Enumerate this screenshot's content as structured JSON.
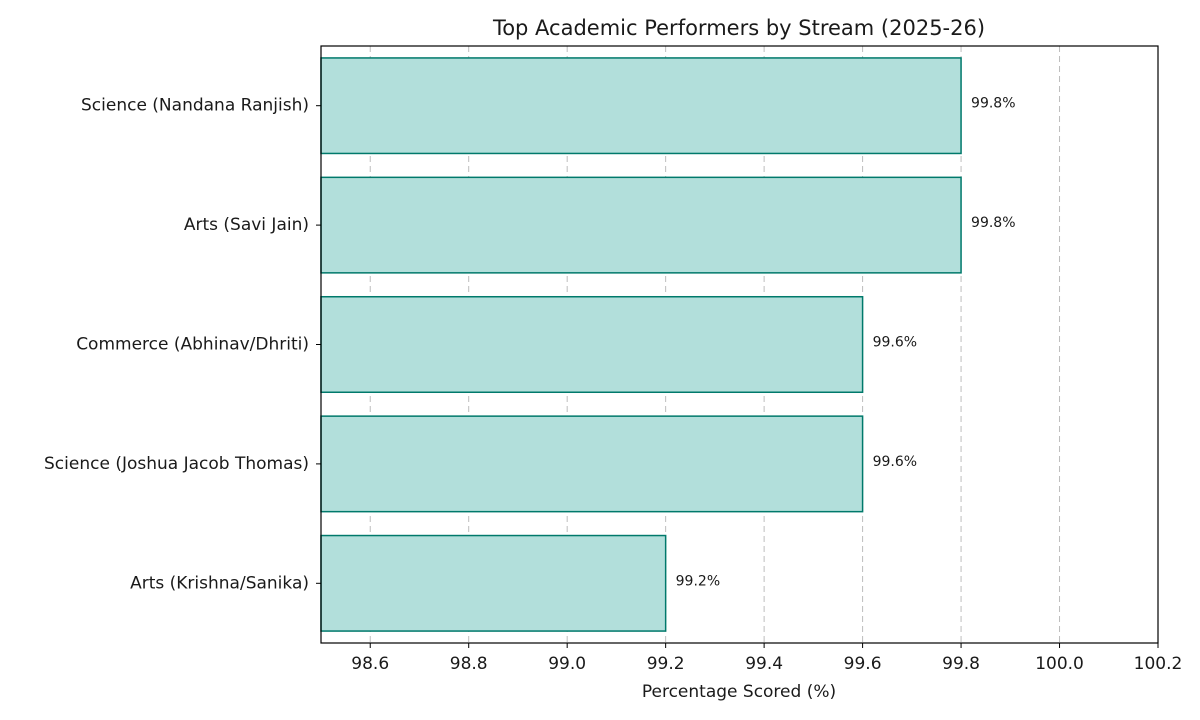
{
  "chart_data": {
    "type": "bar",
    "orientation": "horizontal",
    "title": "Top Academic Performers by Stream (2025-26)",
    "xlabel": "Percentage Scored (%)",
    "ylabel": "",
    "categories": [
      "Science (Nandana Ranjish)",
      "Arts (Savi Jain)",
      "Commerce (Abhinav/Dhriti)",
      "Science (Joshua Jacob Thomas)",
      "Arts (Krishna/Sanika)"
    ],
    "values": [
      99.8,
      99.8,
      99.6,
      99.6,
      99.2
    ],
    "data_labels": [
      "99.8%",
      "99.8%",
      "99.6%",
      "99.6%",
      "99.2%"
    ],
    "xlim": [
      98.5,
      100.2
    ],
    "xticks": [
      98.6,
      98.8,
      99.0,
      99.2,
      99.4,
      99.6,
      99.8,
      100.0,
      100.2
    ],
    "xtick_labels": [
      "98.6",
      "98.8",
      "99.0",
      "99.2",
      "99.4",
      "99.6",
      "99.8",
      "100.0",
      "100.2"
    ],
    "grid": "x-dashed",
    "legend": "none",
    "colors": {
      "bar_fill": "#b2dfdb",
      "bar_edge": "#00796b"
    }
  }
}
